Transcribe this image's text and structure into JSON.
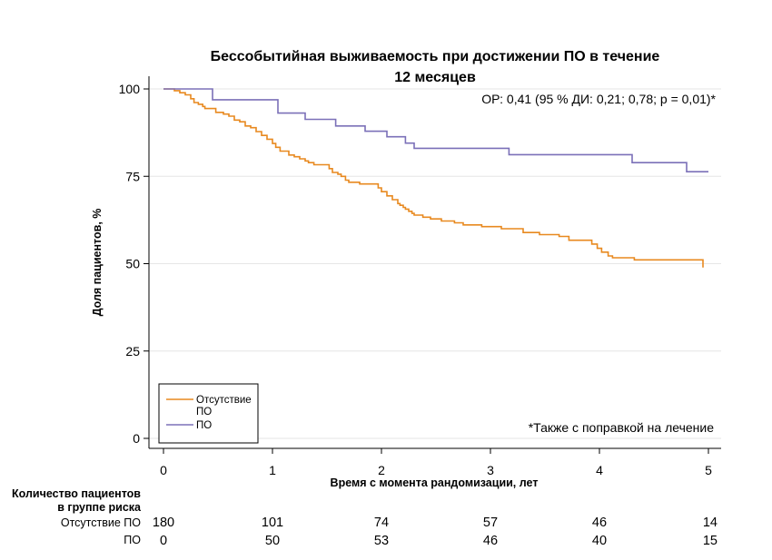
{
  "chart_data": {
    "type": "line",
    "title_lines": [
      "Бессобытийная выживаемость при достижении ПО в течение",
      "12 месяцев"
    ],
    "xlabel": "Время с момента рандомизации, лет",
    "ylabel": "Доля пациентов, %",
    "xlim": [
      0,
      5
    ],
    "ylim": [
      0,
      100
    ],
    "xticks": [
      0,
      1,
      2,
      3,
      4,
      5
    ],
    "yticks": [
      0,
      25,
      50,
      75,
      100
    ],
    "grid": true,
    "hr_text": "ОР: 0,41 (95 % ДИ: 0,21; 0,78; p = 0,01)*",
    "footnote": "*Также с поправкой на лечение",
    "legend": {
      "placement": "bottom-left",
      "entries": [
        {
          "label_lines": [
            "Отсутствие",
            "ПО"
          ],
          "color": "#E8891F"
        },
        {
          "label_lines": [
            "ПО"
          ],
          "color": "#7B70B8"
        }
      ]
    },
    "series": [
      {
        "name": "Отсутствие ПО",
        "color": "#E8891F",
        "x": [
          0,
          0.1,
          0.15,
          0.2,
          0.25,
          0.28,
          0.32,
          0.36,
          0.38,
          0.48,
          0.55,
          0.6,
          0.65,
          0.7,
          0.75,
          0.8,
          0.85,
          0.9,
          0.95,
          1.0,
          1.03,
          1.07,
          1.15,
          1.2,
          1.25,
          1.3,
          1.33,
          1.38,
          1.52,
          1.55,
          1.6,
          1.63,
          1.67,
          1.7,
          1.8,
          1.97,
          2.0,
          2.05,
          2.1,
          2.15,
          2.17,
          2.2,
          2.22,
          2.25,
          2.28,
          2.3,
          2.38,
          2.45,
          2.55,
          2.67,
          2.75,
          2.92,
          3.1,
          3.3,
          3.45,
          3.63,
          3.72,
          3.93,
          3.98,
          4.02,
          4.08,
          4.12,
          4.32,
          4.95
        ],
        "y": [
          100,
          99.5,
          98.9,
          98.3,
          97.2,
          96.1,
          95.6,
          95.0,
          94.4,
          93.3,
          92.8,
          92.2,
          91.1,
          90.6,
          89.4,
          88.9,
          87.8,
          86.7,
          85.6,
          84.4,
          83.3,
          82.2,
          81.1,
          80.6,
          80.0,
          79.4,
          78.9,
          78.3,
          77.2,
          76.1,
          75.6,
          75.0,
          73.9,
          73.3,
          72.8,
          71.7,
          70.6,
          69.4,
          68.3,
          67.2,
          66.7,
          66.1,
          65.6,
          65.0,
          64.4,
          63.9,
          63.3,
          62.8,
          62.2,
          61.7,
          61.1,
          60.6,
          60.0,
          58.9,
          58.3,
          57.8,
          56.7,
          55.6,
          54.4,
          53.3,
          52.2,
          51.7,
          51.1,
          48.9
        ]
      },
      {
        "name": "ПО",
        "color": "#7B70B8",
        "x": [
          0,
          0.45,
          1.0,
          1.05,
          1.3,
          1.58,
          1.85,
          2.05,
          2.1,
          2.22,
          2.3,
          3.17,
          4.3,
          4.8,
          5.0
        ],
        "y": [
          100,
          96.9,
          96.9,
          93.1,
          91.3,
          89.4,
          87.9,
          86.3,
          86.3,
          84.5,
          83.0,
          81.2,
          78.9,
          76.3,
          76.3
        ]
      }
    ],
    "risk_table": {
      "header_lines": [
        "Количество пациентов",
        "в группе риска"
      ],
      "rows": [
        {
          "label": "Отсутствие ПО",
          "values": [
            180,
            101,
            74,
            57,
            46,
            14
          ]
        },
        {
          "label": "ПО",
          "values": [
            0,
            50,
            53,
            46,
            40,
            15
          ]
        }
      ]
    }
  }
}
